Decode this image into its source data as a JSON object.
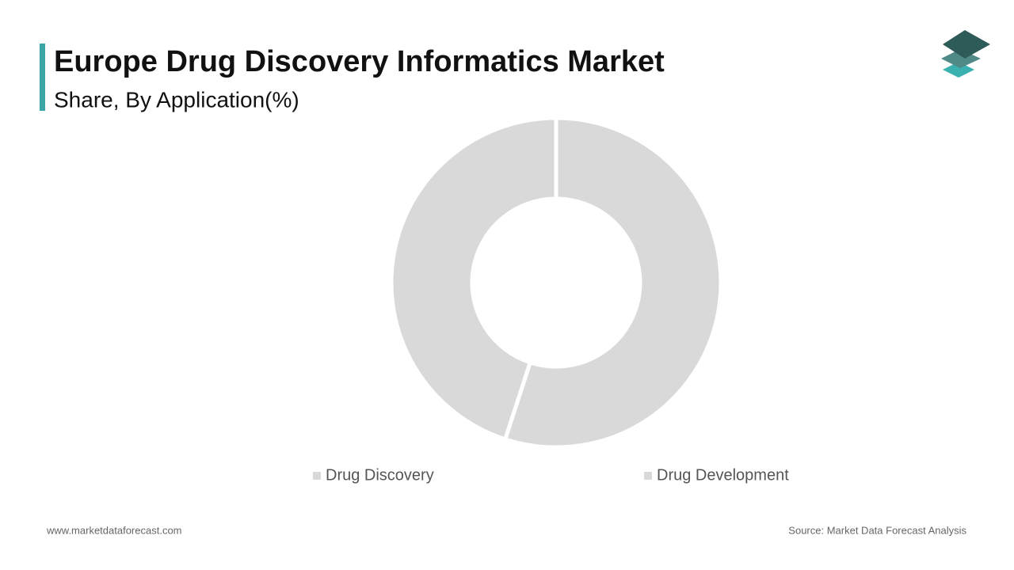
{
  "chart_data": {
    "type": "donut",
    "title": "Europe Drug Discovery Informatics Market",
    "subtitle": "Share, By Application(%)",
    "categories": [
      "Drug Discovery",
      "Drug Development"
    ],
    "values": [
      55,
      45
    ],
    "colors": [
      "#d9d9d9",
      "#d9d9d9"
    ]
  },
  "footer": {
    "website": "www.marketdataforecast.com",
    "source": "Source: Market Data Forecast Analysis"
  }
}
